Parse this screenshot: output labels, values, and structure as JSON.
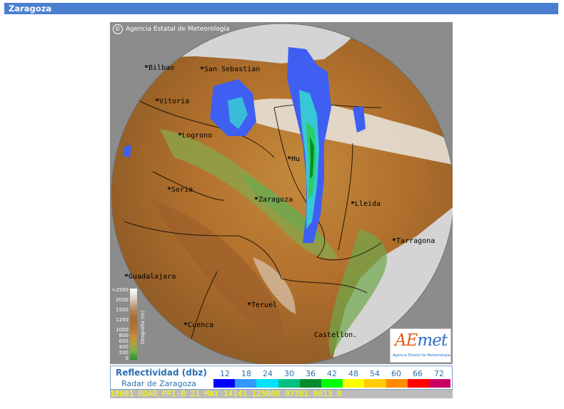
{
  "header": {
    "title": "Zaragoza"
  },
  "map": {
    "copyright": "Agencia Estatal de Meteorología",
    "cities": [
      {
        "name": "Bilbao"
      },
      {
        "name": "San Sebastian"
      },
      {
        "name": "Vitoria"
      },
      {
        "name": "Logrono"
      },
      {
        "name": "Soria"
      },
      {
        "name": "Zaragoza"
      },
      {
        "name": "Hu"
      },
      {
        "name": "Lleida"
      },
      {
        "name": "Tarragona"
      },
      {
        "name": "Guadalajara"
      },
      {
        "name": "Teruel"
      },
      {
        "name": "Cuenca"
      },
      {
        "name": "Castellon."
      }
    ],
    "orography": {
      "title": "Orografía (m)",
      "levels": [
        ">2500",
        "2000",
        "1500",
        "1250",
        "1000",
        "800",
        "600",
        "400",
        "200",
        "0"
      ]
    },
    "logo": {
      "text_a": "AE",
      "text_b": "met",
      "subtitle": "Agencia Estatal de Meteorología"
    }
  },
  "legend": {
    "title": "Reflectividad (dbz)",
    "subtitle": "Radar de Zaragoza",
    "ticks": [
      "12",
      "18",
      "24",
      "30",
      "36",
      "42",
      "48",
      "54",
      "60",
      "66",
      "72"
    ],
    "colors": [
      "#0000fe",
      "#3399ff",
      "#00e0ff",
      "#00c080",
      "#008c2e",
      "#00ff00",
      "#ffff00",
      "#ffcc00",
      "#ff8c00",
      "#ff0000",
      "#c80064"
    ]
  },
  "status_bar": {
    "text": "10001 RDAR_PPI-R   21 MAY 14141 125000 07381 0013 0"
  }
}
